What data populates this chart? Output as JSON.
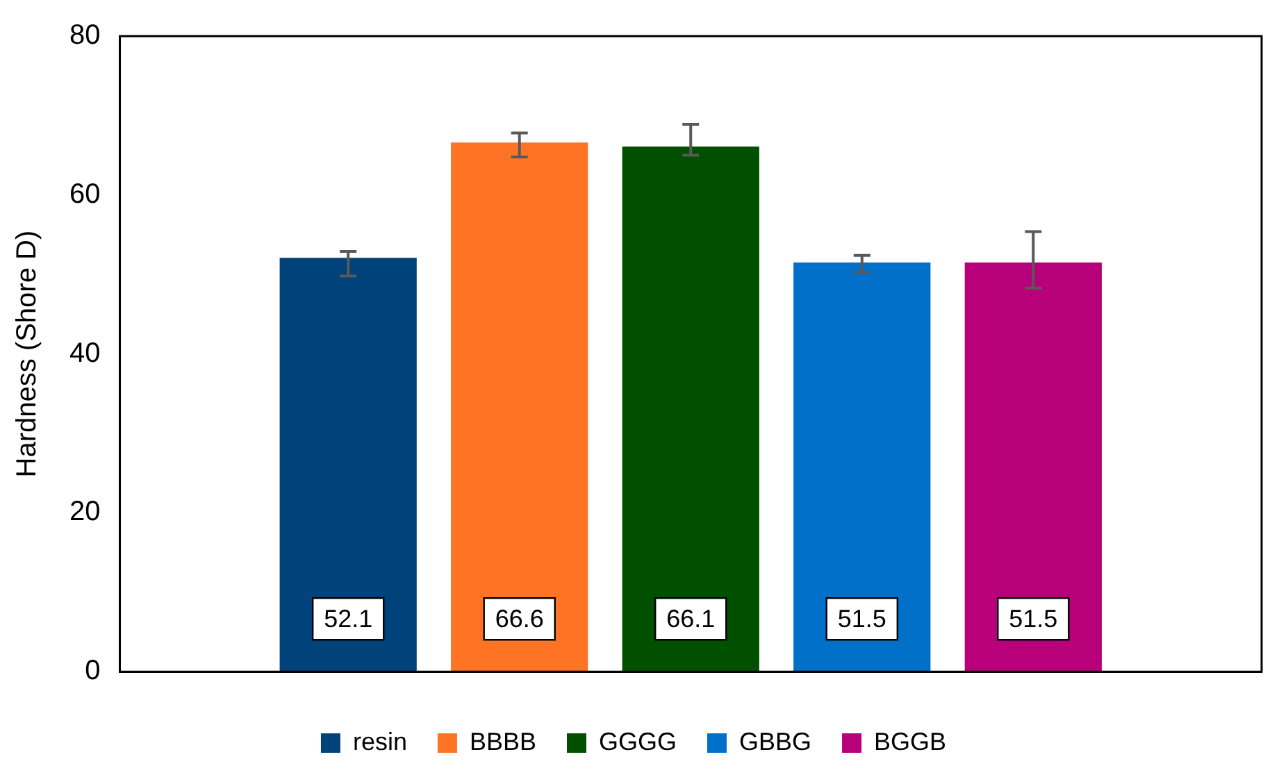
{
  "chart_data": {
    "type": "bar",
    "ylabel": "Hardness (Shore D)",
    "categories": [
      null
    ],
    "series": [
      {
        "name": "resin",
        "color": "#00437a",
        "values": [
          52.1
        ],
        "errors": [
          [
            49.8,
            52.9
          ]
        ]
      },
      {
        "name": "BBBB",
        "color": "#ff7424",
        "values": [
          66.6
        ],
        "errors": [
          [
            64.8,
            67.8
          ]
        ]
      },
      {
        "name": "GGGG",
        "color": "#005000",
        "values": [
          66.1
        ],
        "errors": [
          [
            65.0,
            68.9
          ]
        ]
      },
      {
        "name": "GBBG",
        "color": "#0070c8",
        "values": [
          51.5
        ],
        "errors": [
          [
            50.3,
            52.4
          ]
        ]
      },
      {
        "name": "BGGB",
        "color": "#b8007a",
        "values": [
          51.5
        ],
        "errors": [
          [
            48.3,
            55.4
          ]
        ]
      }
    ],
    "ylim": [
      0,
      80
    ],
    "yticks": [
      0,
      20,
      40,
      60,
      80
    ],
    "grid": false,
    "legend": "bottom",
    "data_labels": true
  }
}
